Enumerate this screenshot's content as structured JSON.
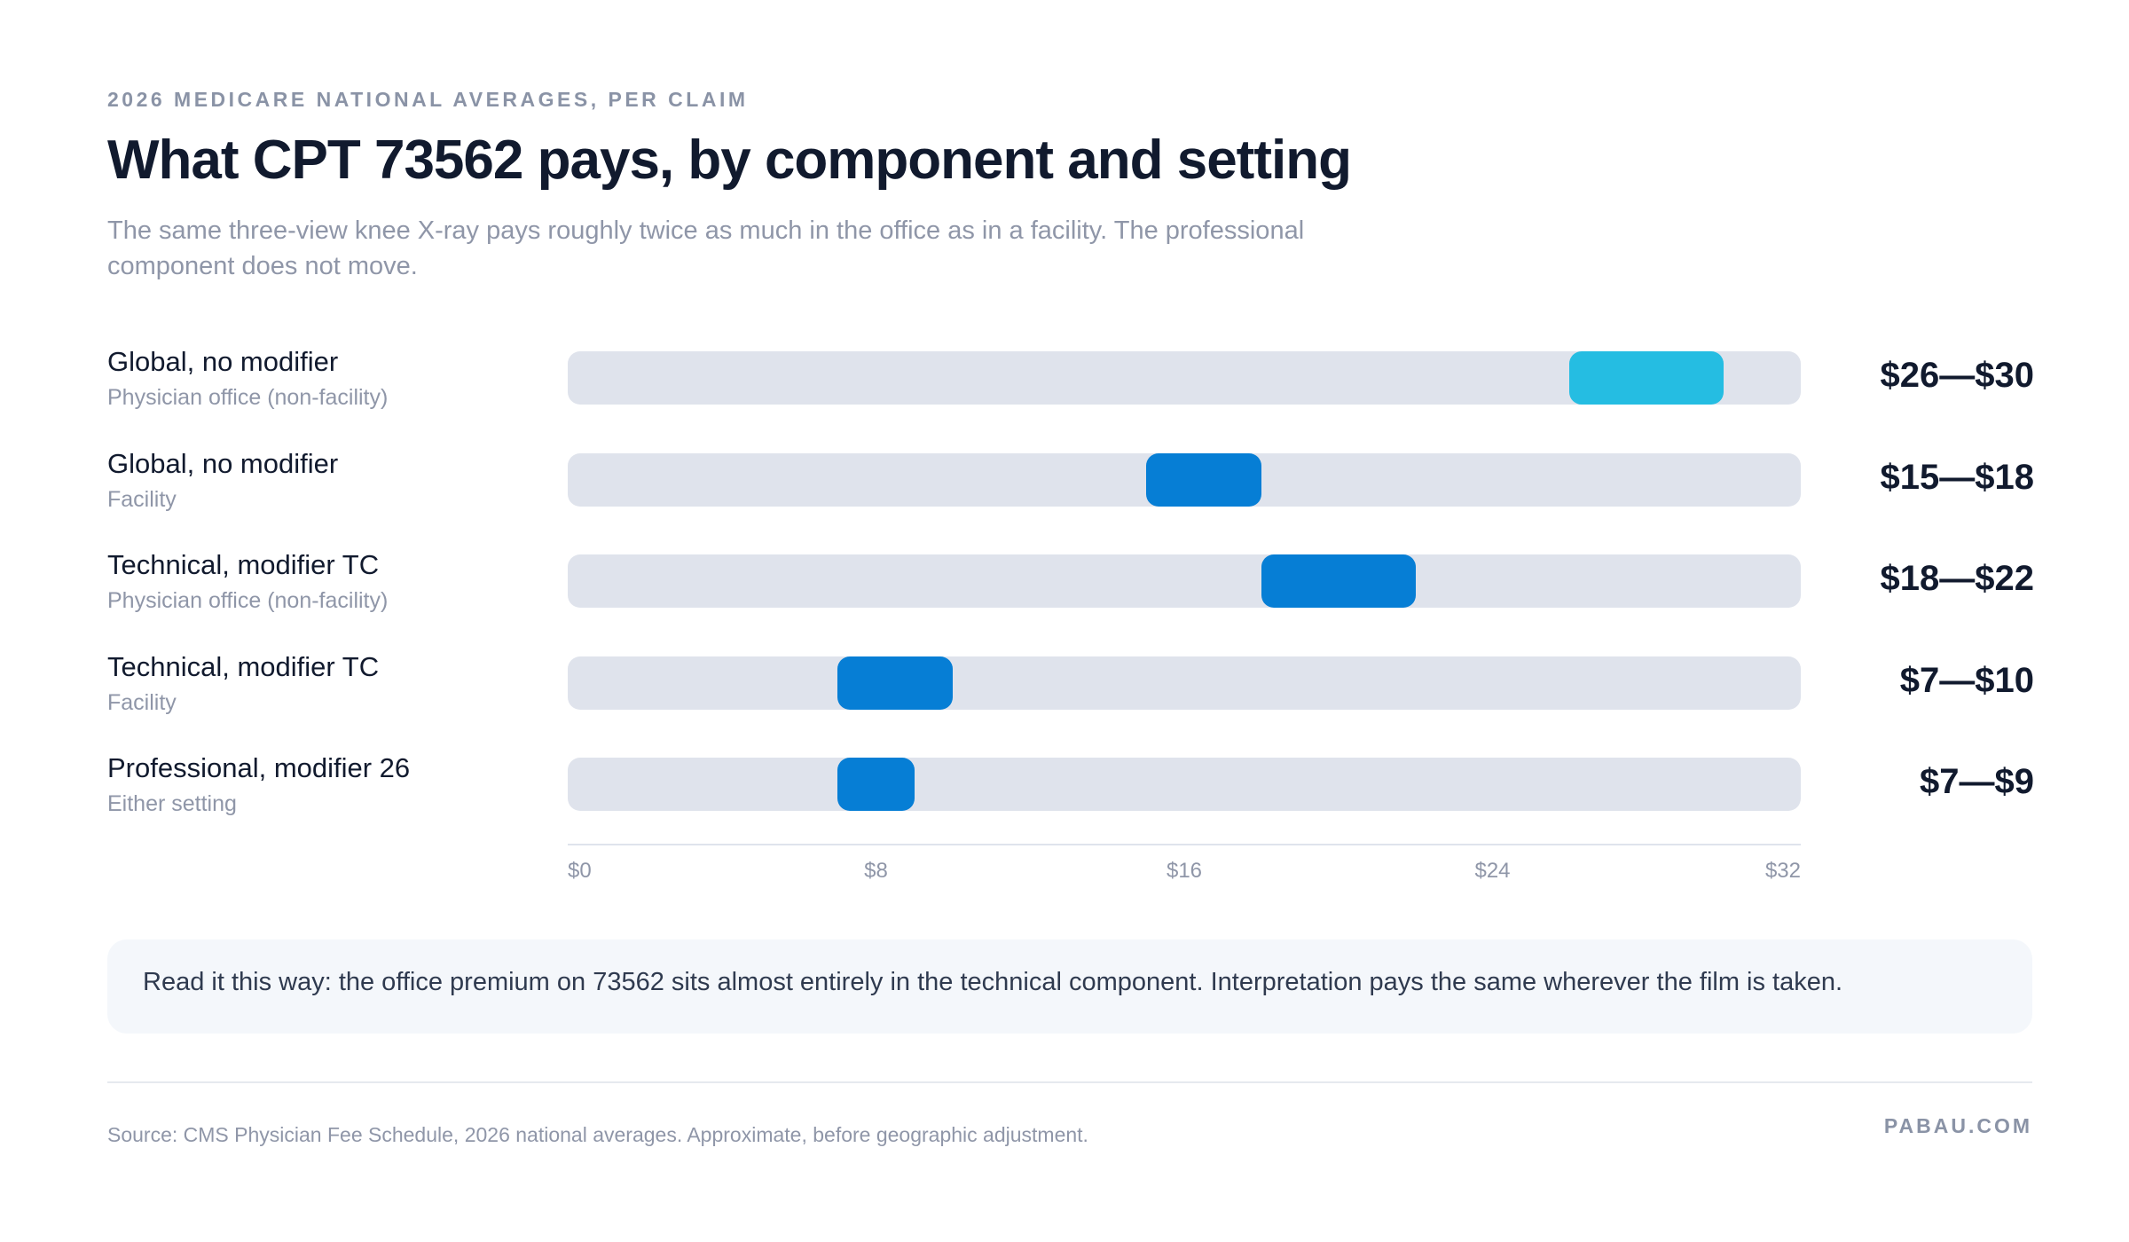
{
  "header": {
    "eyebrow": "2026 MEDICARE NATIONAL AVERAGES, PER CLAIM",
    "title": "What CPT 73562 pays, by component and setting",
    "subtitle": "The same three-view knee X-ray pays roughly twice as much in the office as in a facility. The professional component does not move."
  },
  "chart_data": {
    "type": "bar",
    "orientation": "horizontal-range",
    "title": "What CPT 73562 pays, by component and setting",
    "xlim": [
      0,
      32
    ],
    "x_ticks": [
      "$0",
      "$8",
      "$16",
      "$24",
      "$32"
    ],
    "x_tick_values": [
      0,
      8,
      16,
      24,
      32
    ],
    "grid": false,
    "rows": [
      {
        "label": "Global, no modifier",
        "sublabel": "Physician office (non-facility)",
        "low": 26,
        "high": 30,
        "range_label": "$26—$30",
        "color": "#25bde2"
      },
      {
        "label": "Global, no modifier",
        "sublabel": "Facility",
        "low": 15,
        "high": 18,
        "range_label": "$15—$18",
        "color": "#067ed5"
      },
      {
        "label": "Technical, modifier TC",
        "sublabel": "Physician office (non-facility)",
        "low": 18,
        "high": 22,
        "range_label": "$18—$22",
        "color": "#067ed5"
      },
      {
        "label": "Technical, modifier TC",
        "sublabel": "Facility",
        "low": 7,
        "high": 10,
        "range_label": "$7—$10",
        "color": "#067ed5"
      },
      {
        "label": "Professional, modifier 26",
        "sublabel": "Either setting",
        "low": 7,
        "high": 9,
        "range_label": "$7—$9",
        "color": "#067ed5"
      }
    ]
  },
  "callout": {
    "text": "Read it this way: the office premium on 73562 sits almost entirely in the technical component. Interpretation pays the same wherever the film is taken."
  },
  "footer": {
    "source": "Source: CMS Physician Fee Schedule, 2026 national averages. Approximate, before geographic adjustment.",
    "brand": "PABAU.COM"
  },
  "colors": {
    "track": "#dfe3ec",
    "highlight": "#25bde2",
    "bar": "#067ed5",
    "text": "#111a2e",
    "muted": "#8f96a8"
  }
}
